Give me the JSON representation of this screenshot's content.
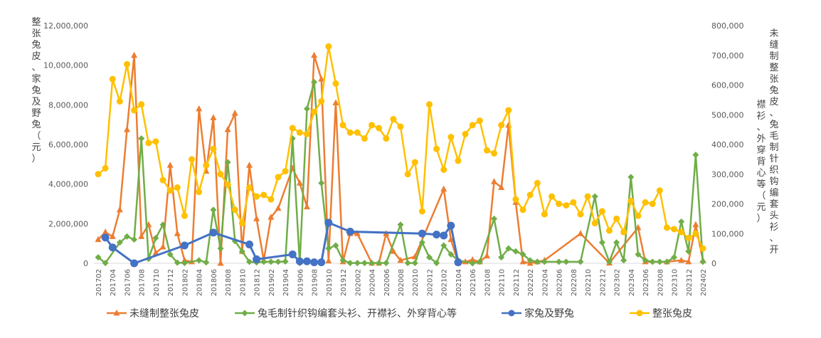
{
  "chart_data": {
    "type": "line",
    "title": "",
    "ylabel_left": "整张兔皮、家兔及野兔（元）",
    "ylabel_right": "未缝制整张兔皮、兔毛制针织钩编套头衫、开襟衫、外穿背心等（元）",
    "ylim_left": [
      0,
      12000000
    ],
    "ylim_right": [
      0,
      800000
    ],
    "yticks_left": [
      "0",
      "2,000,000",
      "4,000,000",
      "6,000,000",
      "8,000,000",
      "10,000,000",
      "12,000,000"
    ],
    "yticks_right": [
      "0",
      "100,000",
      "200,000",
      "300,000",
      "400,000",
      "500,000",
      "600,000",
      "700,000",
      "800,000"
    ],
    "x_tick_labels": [
      "201702",
      "201704",
      "201706",
      "201708",
      "201710",
      "201712",
      "201802",
      "201804",
      "201806",
      "201808",
      "201810",
      "201812",
      "201902",
      "201904",
      "201906",
      "201908",
      "201910",
      "201912",
      "202002",
      "202004",
      "202006",
      "202008",
      "202010",
      "202012",
      "202102",
      "202104",
      "202106",
      "202108",
      "202110",
      "202112",
      "202202",
      "202204",
      "202206",
      "202208",
      "202210",
      "202212",
      "202302",
      "202304",
      "202306",
      "202308",
      "202310",
      "202312",
      "202402"
    ],
    "x_start": "2017-02",
    "x_count": 85,
    "legend_position": "bottom",
    "grid": false,
    "series": [
      {
        "name": "未缝制整张兔皮",
        "axis": "right",
        "color": "#ED7D31",
        "marker": "triangle",
        "points": [
          [
            0,
            80000
          ],
          [
            1,
            105000
          ],
          [
            2,
            90000
          ],
          [
            3,
            180000
          ],
          [
            4,
            450000
          ],
          [
            5,
            700000
          ],
          [
            6,
            90000
          ],
          [
            7,
            130000
          ],
          [
            8,
            35000
          ],
          [
            9,
            55000
          ],
          [
            10,
            330000
          ],
          [
            11,
            100000
          ],
          [
            12,
            10000
          ],
          [
            13,
            5000
          ],
          [
            14,
            520000
          ],
          [
            15,
            310000
          ],
          [
            16,
            490000
          ],
          [
            17,
            0
          ],
          [
            18,
            450000
          ],
          [
            19,
            505000
          ],
          [
            20,
            40000
          ],
          [
            21,
            330000
          ],
          [
            22,
            150000
          ],
          [
            23,
            10000
          ],
          [
            24,
            155000
          ],
          [
            25,
            185000
          ],
          [
            27,
            320000
          ],
          [
            28,
            270000
          ],
          [
            29,
            190000
          ],
          [
            30,
            700000
          ],
          [
            31,
            620000
          ],
          [
            32,
            8000
          ],
          [
            33,
            540000
          ],
          [
            34,
            5000
          ],
          [
            35,
            100000
          ],
          [
            36,
            100000
          ],
          [
            38,
            1000
          ],
          [
            39,
            1000
          ],
          [
            40,
            100000
          ],
          [
            41,
            40000
          ],
          [
            42,
            10000
          ],
          [
            44,
            22000
          ],
          [
            48,
            250000
          ],
          [
            49,
            80000
          ],
          [
            50,
            1000
          ],
          [
            51,
            5000
          ],
          [
            52,
            12000
          ],
          [
            53,
            5000
          ],
          [
            54,
            25000
          ],
          [
            55,
            275000
          ],
          [
            56,
            255000
          ],
          [
            57,
            465000
          ],
          [
            58,
            205000
          ],
          [
            59,
            5000
          ],
          [
            60,
            0
          ],
          [
            61,
            5000
          ],
          [
            62,
            10000
          ],
          [
            67,
            100000
          ],
          [
            71,
            1000
          ],
          [
            75,
            120000
          ],
          [
            76,
            5000
          ],
          [
            79,
            5000
          ],
          [
            81,
            10000
          ],
          [
            82,
            5000
          ],
          [
            83,
            130000
          ],
          [
            84,
            10000
          ]
        ]
      },
      {
        "name": "兔毛制针织钩编套头衫、开襟衫、外穿背心等",
        "axis": "right",
        "color": "#70AD47",
        "marker": "diamond",
        "points": [
          [
            0,
            20000
          ],
          [
            1,
            1000
          ],
          [
            3,
            70000
          ],
          [
            4,
            90000
          ],
          [
            5,
            80000
          ],
          [
            6,
            420000
          ],
          [
            7,
            15000
          ],
          [
            8,
            85000
          ],
          [
            9,
            130000
          ],
          [
            10,
            30000
          ],
          [
            11,
            2000
          ],
          [
            12,
            1000
          ],
          [
            14,
            10000
          ],
          [
            15,
            3000
          ],
          [
            16,
            180000
          ],
          [
            17,
            50000
          ],
          [
            18,
            340000
          ],
          [
            19,
            75000
          ],
          [
            20,
            40000
          ],
          [
            21,
            5000
          ],
          [
            22,
            3000
          ],
          [
            23,
            5000
          ],
          [
            24,
            5000
          ],
          [
            25,
            5000
          ],
          [
            26,
            6000
          ],
          [
            27,
            420000
          ],
          [
            28,
            1000
          ],
          [
            29,
            520000
          ],
          [
            30,
            610000
          ],
          [
            31,
            270000
          ],
          [
            32,
            50000
          ],
          [
            33,
            60000
          ],
          [
            34,
            10000
          ],
          [
            35,
            1000
          ],
          [
            36,
            1000
          ],
          [
            37,
            1000
          ],
          [
            38,
            1000
          ],
          [
            39,
            1000
          ],
          [
            40,
            1000
          ],
          [
            42,
            130000
          ],
          [
            43,
            1000
          ],
          [
            44,
            1000
          ],
          [
            45,
            70000
          ],
          [
            46,
            20000
          ],
          [
            47,
            1000
          ],
          [
            48,
            60000
          ],
          [
            49,
            30000
          ],
          [
            50,
            10000
          ],
          [
            52,
            0
          ],
          [
            53,
            5000
          ],
          [
            55,
            150000
          ],
          [
            56,
            20000
          ],
          [
            57,
            50000
          ],
          [
            58,
            40000
          ],
          [
            59,
            30000
          ],
          [
            60,
            10000
          ],
          [
            61,
            5000
          ],
          [
            62,
            5000
          ],
          [
            64,
            5000
          ],
          [
            65,
            5000
          ],
          [
            67,
            5000
          ],
          [
            69,
            225000
          ],
          [
            70,
            70000
          ],
          [
            71,
            5000
          ],
          [
            72,
            70000
          ],
          [
            73,
            10000
          ],
          [
            74,
            290000
          ],
          [
            75,
            30000
          ],
          [
            76,
            10000
          ],
          [
            77,
            5000
          ],
          [
            78,
            5000
          ],
          [
            79,
            5000
          ],
          [
            80,
            20000
          ],
          [
            81,
            140000
          ],
          [
            82,
            40000
          ],
          [
            83,
            365000
          ],
          [
            84,
            5000
          ]
        ]
      },
      {
        "name": "家兔及野兔",
        "axis": "left",
        "color": "#4472C4",
        "marker": "circle",
        "points": [
          [
            1,
            1300000
          ],
          [
            2,
            800000
          ],
          [
            5,
            0
          ],
          [
            12,
            900000
          ],
          [
            16,
            1550000
          ],
          [
            21,
            950000
          ],
          [
            22,
            200000
          ],
          [
            27,
            450000
          ],
          [
            28,
            100000
          ],
          [
            29,
            100000
          ],
          [
            30,
            50000
          ],
          [
            31,
            50000
          ],
          [
            32,
            2050000
          ],
          [
            35,
            1600000
          ],
          [
            45,
            1500000
          ],
          [
            47,
            1450000
          ],
          [
            48,
            1400000
          ],
          [
            49,
            1900000
          ],
          [
            50,
            50000
          ]
        ]
      },
      {
        "name": "整张兔皮",
        "axis": "right",
        "color": "#FFC000",
        "marker": "circle",
        "points": [
          [
            0,
            300000
          ],
          [
            1,
            320000
          ],
          [
            2,
            620000
          ],
          [
            3,
            545000
          ],
          [
            4,
            670000
          ],
          [
            5,
            515000
          ],
          [
            6,
            535000
          ],
          [
            7,
            405000
          ],
          [
            8,
            410000
          ],
          [
            9,
            280000
          ],
          [
            10,
            245000
          ],
          [
            11,
            255000
          ],
          [
            12,
            160000
          ],
          [
            13,
            350000
          ],
          [
            14,
            240000
          ],
          [
            15,
            330000
          ],
          [
            16,
            385000
          ],
          [
            17,
            300000
          ],
          [
            18,
            265000
          ],
          [
            19,
            180000
          ],
          [
            20,
            135000
          ],
          [
            21,
            255000
          ],
          [
            22,
            225000
          ],
          [
            23,
            230000
          ],
          [
            24,
            215000
          ],
          [
            25,
            290000
          ],
          [
            26,
            310000
          ],
          [
            27,
            455000
          ],
          [
            28,
            440000
          ],
          [
            29,
            435000
          ],
          [
            30,
            510000
          ],
          [
            31,
            545000
          ],
          [
            32,
            730000
          ],
          [
            33,
            605000
          ],
          [
            34,
            465000
          ],
          [
            35,
            440000
          ],
          [
            36,
            440000
          ],
          [
            37,
            420000
          ],
          [
            38,
            465000
          ],
          [
            39,
            455000
          ],
          [
            40,
            420000
          ],
          [
            41,
            485000
          ],
          [
            42,
            460000
          ],
          [
            43,
            300000
          ],
          [
            44,
            340000
          ],
          [
            45,
            175000
          ],
          [
            46,
            535000
          ],
          [
            47,
            385000
          ],
          [
            48,
            315000
          ],
          [
            49,
            425000
          ],
          [
            50,
            345000
          ],
          [
            51,
            435000
          ],
          [
            52,
            465000
          ],
          [
            53,
            480000
          ],
          [
            54,
            380000
          ],
          [
            55,
            370000
          ],
          [
            56,
            465000
          ],
          [
            57,
            515000
          ],
          [
            58,
            215000
          ],
          [
            59,
            180000
          ],
          [
            60,
            230000
          ],
          [
            61,
            270000
          ],
          [
            62,
            165000
          ],
          [
            63,
            225000
          ],
          [
            64,
            200000
          ],
          [
            65,
            195000
          ],
          [
            66,
            205000
          ],
          [
            67,
            165000
          ],
          [
            68,
            225000
          ],
          [
            69,
            135000
          ],
          [
            70,
            175000
          ],
          [
            71,
            110000
          ],
          [
            72,
            150000
          ],
          [
            73,
            105000
          ],
          [
            74,
            210000
          ],
          [
            75,
            160000
          ],
          [
            76,
            205000
          ],
          [
            77,
            200000
          ],
          [
            78,
            245000
          ],
          [
            79,
            120000
          ],
          [
            80,
            115000
          ],
          [
            81,
            105000
          ],
          [
            82,
            85000
          ],
          [
            83,
            100000
          ],
          [
            84,
            50000
          ]
        ]
      }
    ]
  }
}
